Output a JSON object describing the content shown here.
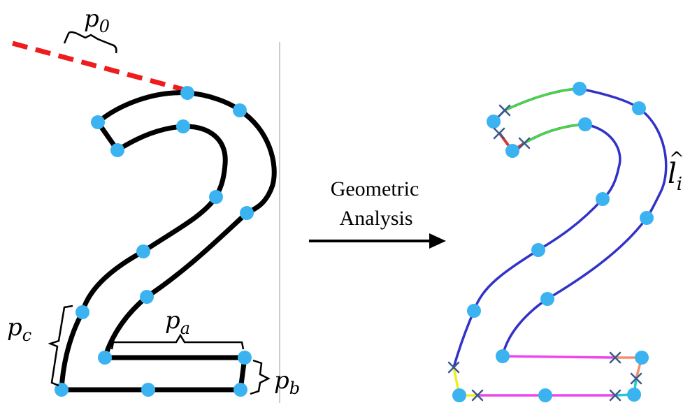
{
  "arrow_label": {
    "line1": "Geometric",
    "line2": "Analysis"
  },
  "labels": {
    "p0_main": "p",
    "p0_sub": "0",
    "pa_main": "p",
    "pa_sub": "a",
    "pb_main": "p",
    "pb_sub": "b",
    "pc_main": "p",
    "pc_sub": "c",
    "li_main": "l",
    "li_hat": "^",
    "li_sub": "i"
  },
  "colors": {
    "outline": "#000000",
    "ray": "#ee1c1c",
    "point": "#3bb3f0",
    "curve_blue": "#3232c8",
    "curve_green": "#44dd33",
    "curve_red": "#e03030",
    "curve_magenta": "#ee44ee",
    "curve_orange": "#f09070",
    "curve_yellow": "#eeee22",
    "curve_cyan": "#22cccc",
    "cross": "#3a5a8a",
    "divider": "#bbbbbb"
  }
}
